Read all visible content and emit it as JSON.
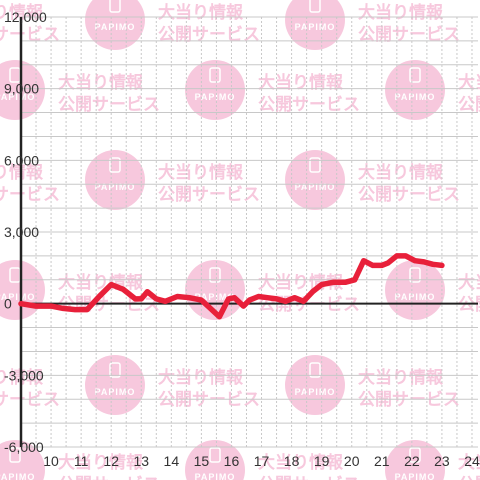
{
  "chart_data": {
    "type": "line",
    "title": "",
    "xlabel": "",
    "ylabel": "",
    "x_ticks": [
      "10",
      "11",
      "12",
      "13",
      "14",
      "15",
      "16",
      "17",
      "18",
      "19",
      "20",
      "21",
      "22",
      "23",
      "24"
    ],
    "y_ticks": [
      "12,000",
      "9,000",
      "6,000",
      "3,000",
      "0",
      "-3,000",
      "-6,000"
    ],
    "y_tick_values": [
      12000,
      9000,
      6000,
      3000,
      0,
      -3000,
      -6000
    ],
    "xlim": [
      9,
      24.2
    ],
    "ylim": [
      -6000,
      12000
    ],
    "grid": true,
    "series": [
      {
        "color": "#e8203a",
        "x": [
          9,
          9.5,
          10,
          10.4,
          10.8,
          11.2,
          11.6,
          12,
          12.4,
          12.8,
          13,
          13.2,
          13.5,
          13.8,
          14.2,
          14.6,
          15,
          15.3,
          15.6,
          15.9,
          16.1,
          16.4,
          16.6,
          16.9,
          17.2,
          17.5,
          17.8,
          18.1,
          18.4,
          18.7,
          19,
          19.4,
          19.8,
          20.1,
          20.4,
          20.7,
          21,
          21.2,
          21.5,
          21.8,
          22.1,
          22.4,
          22.7,
          23
        ],
        "y": [
          0,
          -100,
          -100,
          -200,
          -250,
          -250,
          300,
          800,
          600,
          200,
          200,
          500,
          200,
          100,
          300,
          250,
          150,
          -200,
          -550,
          200,
          250,
          -100,
          150,
          300,
          250,
          200,
          100,
          250,
          100,
          500,
          800,
          900,
          900,
          1000,
          1800,
          1600,
          1600,
          1700,
          2000,
          2000,
          1800,
          1750,
          1650,
          1600
        ]
      }
    ]
  },
  "watermark": {
    "line1": "大当り情報",
    "line2": "公開サービス",
    "logo_text": "PAPIMO",
    "color": "#f7c8dd"
  }
}
